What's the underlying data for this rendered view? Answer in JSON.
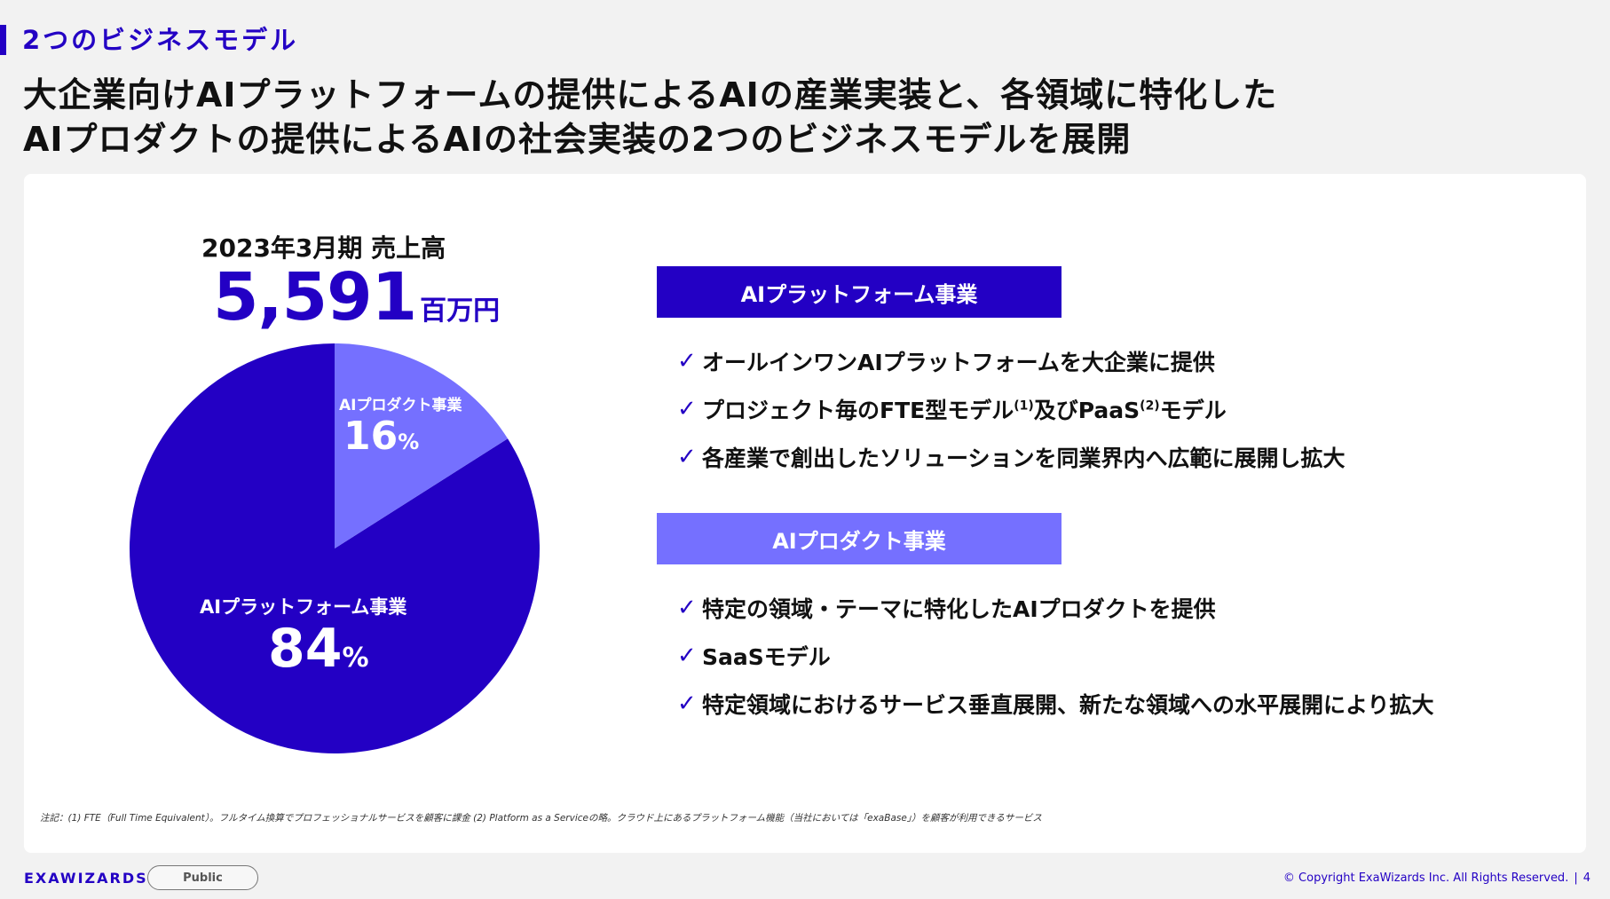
{
  "section_tag": "2つのビジネスモデル",
  "headline": {
    "line1": "大企業向けAIプラットフォームの提供によるAIの産業実装と、各領域に特化した",
    "line2": "AIプロダクトの提供によるAIの社会実装の2つのビジネスモデルを展開"
  },
  "sales": {
    "label": "2023年3月期 売上高",
    "value": "5,591",
    "unit": "百万円"
  },
  "chart_data": {
    "type": "pie",
    "slices": [
      {
        "label": "AIプロダクト事業",
        "value": 16,
        "display": "16",
        "color": "#7570ff"
      },
      {
        "label": "AIプラットフォーム事業",
        "value": 84,
        "display": "84",
        "color": "#2300c4"
      }
    ],
    "percent_sign": "%"
  },
  "platform": {
    "title": "AIプラットフォーム事業",
    "bullet1": "オールインワンAIプラットフォームを大企業に提供",
    "bullet2_a": "プロジェクト毎のFTE型モデル",
    "bullet2_note1": "(1)",
    "bullet2_b": "及びPaaS",
    "bullet2_note2": "(2)",
    "bullet2_c": "モデル",
    "bullet3": "各産業で創出したソリューションを同業界内へ広範に展開し拡大"
  },
  "product": {
    "title": "AIプロダクト事業",
    "bullet1": "特定の領域・テーマに特化したAIプロダクトを提供",
    "bullet2": "SaaSモデル",
    "bullet3": "特定領域におけるサービス垂直展開、新たな領域への水平展開により拡大"
  },
  "check_mark": "✓",
  "footnote": "注記：(1) FTE（Full Time Equivalent）。フルタイム換算でプロフェッショナルサービスを顧客に課金 (2) Platform as a Serviceの略。クラウド上にあるプラットフォーム機能（当社においては「exaBase」）を顧客が利用できるサービス",
  "footer": {
    "logo": "EXAWIZARDS",
    "badge": "Public",
    "copyright": "© Copyright ExaWizards Inc. All Rights Reserved.",
    "separator": "|",
    "page": "4"
  },
  "colors": {
    "primary": "#2300c4",
    "secondary": "#7570ff",
    "background": "#f2f2f2"
  }
}
